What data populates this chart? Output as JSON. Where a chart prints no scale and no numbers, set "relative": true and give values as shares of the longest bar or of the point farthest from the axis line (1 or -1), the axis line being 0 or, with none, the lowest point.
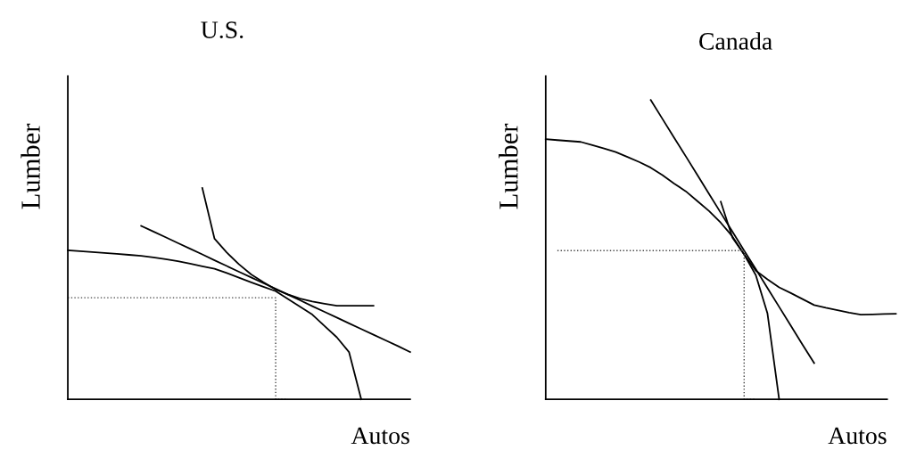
{
  "chart_data": [
    {
      "type": "line",
      "title": "U.S.",
      "xlabel": "Autos",
      "ylabel": "Lumber",
      "relative": true,
      "categories": [
        null,
        null,
        null,
        null,
        null,
        null,
        null,
        null,
        null,
        null,
        null,
        null,
        null,
        null,
        null,
        null,
        null,
        null,
        null,
        null,
        null,
        null,
        null,
        null,
        null,
        null,
        null,
        null,
        null
      ],
      "series": [
        {
          "color": "#000000",
          "line_style": "solid",
          "values": [
            0.705,
            0.701,
            0.697,
            0.693,
            0.689,
            0.684,
            0.679,
            0.672,
            0.663,
            0.654,
            0.642,
            0.63,
            0.618,
            0.598,
            0.576,
            0.554,
            0.533,
            0.512,
            0.475,
            0.438,
            0.401,
            0.347,
            0.294,
            0.224,
            0,
            null,
            null,
            null,
            null
          ]
        },
        {
          "color": "#000000",
          "line_style": "solid",
          "values": [
            null,
            null,
            null,
            null,
            null,
            null,
            0.821,
            0.794,
            0.767,
            0.74,
            0.713,
            0.686,
            0.658,
            0.631,
            0.604,
            0.577,
            0.55,
            0.523,
            0.496,
            0.469,
            0.441,
            0.414,
            0.387,
            0.36,
            0.333,
            0.306,
            0.279,
            0.252,
            0.224
          ]
        },
        {
          "color": "#000000",
          "line_style": "solid",
          "values": [
            null,
            null,
            null,
            null,
            null,
            null,
            null,
            null,
            null,
            null,
            null,
            1.0,
            0.76,
            0.695,
            0.639,
            0.591,
            0.554,
            0.52,
            0.497,
            0.477,
            0.463,
            0.453,
            0.443,
            0.443,
            0.443,
            0.443,
            null,
            null,
            null
          ]
        },
        {
          "type": "step",
          "color": "#444444",
          "line_style": "dotted",
          "values": [
            0.481,
            0.481,
            0.481,
            0.481,
            0.481,
            0.481,
            0.481,
            0.481,
            0.481,
            0.481,
            0.481,
            0.481,
            0.481,
            0.481,
            0.481,
            0.481,
            0.481,
            0.481,
            0,
            null,
            null,
            null,
            null,
            null,
            null,
            null,
            null,
            null,
            null
          ]
        }
      ]
    },
    {
      "type": "line",
      "title": "Canada",
      "xlabel": "Autos",
      "ylabel": "Lumber",
      "relative": true,
      "categories": [
        null,
        null,
        null,
        null,
        null,
        null,
        null,
        null,
        null,
        null,
        null,
        null,
        null,
        null,
        null,
        null,
        null,
        null,
        null,
        null,
        null,
        null,
        null,
        null,
        null,
        null,
        null,
        null,
        null,
        null,
        null
      ],
      "series": [
        {
          "color": "#000000",
          "line_style": "solid",
          "values": [
            0.869,
            0.866,
            0.863,
            0.86,
            0.849,
            0.838,
            0.826,
            0.81,
            0.793,
            0.774,
            0.749,
            0.721,
            0.695,
            0.662,
            0.629,
            0.59,
            0.544,
            0.484,
            0.415,
            0.287,
            0,
            null,
            null,
            null,
            null,
            null,
            null,
            null,
            null,
            null,
            null
          ]
        },
        {
          "color": "#000000",
          "line_style": "solid",
          "values": [
            null,
            null,
            null,
            null,
            null,
            null,
            null,
            null,
            null,
            1.0,
            0.937,
            0.874,
            0.812,
            0.749,
            0.686,
            0.623,
            0.56,
            0.497,
            0.435,
            0.372,
            0.309,
            0.246,
            0.183,
            0.121,
            null,
            null,
            null,
            null,
            null,
            null,
            null
          ]
        },
        {
          "color": "#000000",
          "line_style": "solid",
          "values": [
            null,
            null,
            null,
            null,
            null,
            null,
            null,
            null,
            null,
            null,
            null,
            null,
            null,
            null,
            null,
            0.66,
            0.54,
            0.484,
            0.43,
            0.401,
            0.374,
            0.355,
            0.335,
            0.315,
            0.306,
            0.298,
            0.29,
            0.283,
            0.284,
            0.285,
            0.286
          ]
        },
        {
          "type": "step",
          "color": "#444444",
          "line_style": "dotted",
          "values": [
            null,
            0.497,
            0.497,
            0.497,
            0.497,
            0.497,
            0.497,
            0.497,
            0.497,
            0.497,
            0.497,
            0.497,
            0.497,
            0.497,
            0.497,
            0.497,
            0.497,
            0.497,
            0,
            null,
            null,
            null,
            null,
            null,
            null,
            null,
            null,
            null,
            null,
            null,
            null
          ]
        }
      ]
    }
  ]
}
